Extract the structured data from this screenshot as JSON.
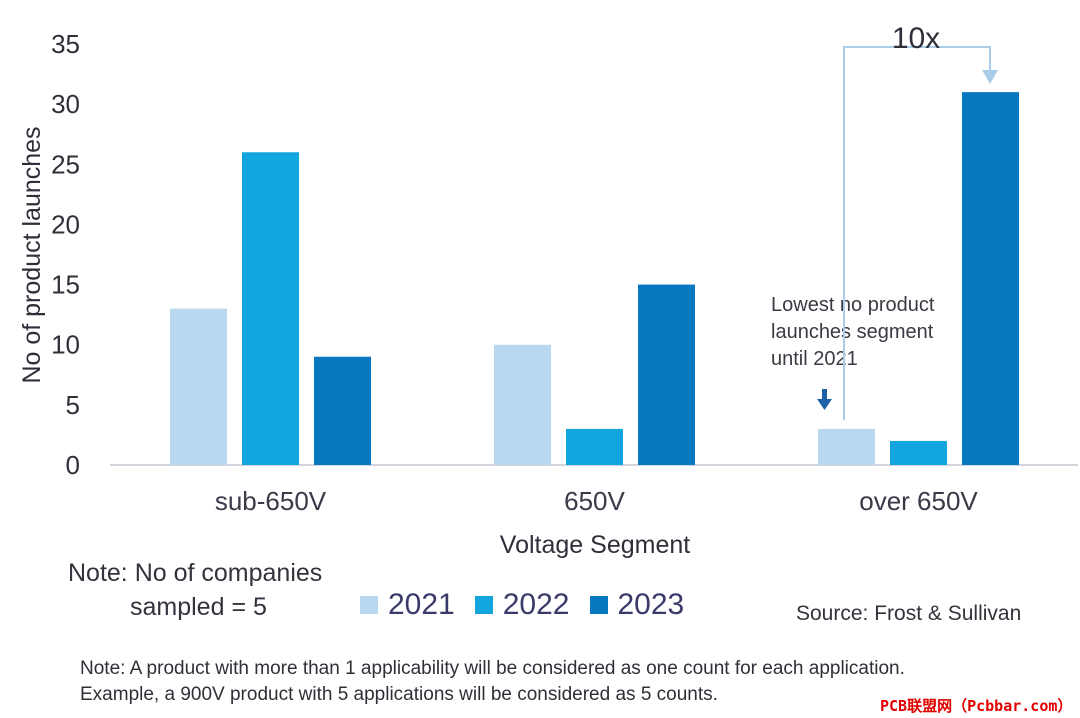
{
  "chart_data": {
    "type": "bar",
    "title": "",
    "xlabel": "Voltage Segment",
    "ylabel": "No of product launches",
    "ylim": [
      0,
      35
    ],
    "yticks": [
      0,
      5,
      10,
      15,
      20,
      25,
      30,
      35
    ],
    "categories": [
      "sub-650V",
      "650V",
      "over 650V"
    ],
    "series": [
      {
        "name": "2021",
        "values": [
          13,
          10,
          3
        ],
        "color": "#b8d8ef"
      },
      {
        "name": "2022",
        "values": [
          26,
          3,
          2
        ],
        "color": "#13a5dd"
      },
      {
        "name": "2023",
        "values": [
          9,
          15,
          31
        ],
        "color": "#0878c1"
      }
    ],
    "annotations": {
      "lowest": [
        "Lowest no product",
        "launches segment",
        "until 2021"
      ],
      "multiplier": "10x"
    }
  },
  "notes": {
    "companies_line1": "Note: No of companies",
    "companies_line2": "sampled = 5",
    "source": "Source: Frost & Sullivan",
    "footnote_line1": "Note: A product with more than 1 applicability will be considered as one count for each application.",
    "footnote_line2": "Example, a 900V product with 5 applications will be considered as 5 counts."
  },
  "watermark": "PCB联盟网（Pcbbar.com）"
}
